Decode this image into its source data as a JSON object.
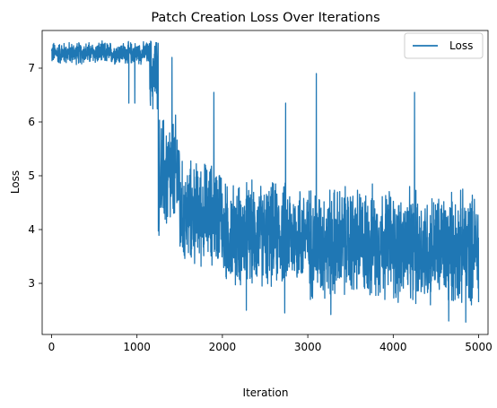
{
  "chart_data": {
    "type": "line",
    "title": "Patch Creation Loss Over Iterations",
    "xlabel": "Iteration",
    "ylabel": "Loss",
    "xlim": [
      -110,
      5110
    ],
    "ylim": [
      2.05,
      7.7
    ],
    "x_ticks": [
      0,
      1000,
      2000,
      3000,
      4000,
      5000
    ],
    "x_tick_labels": [
      "0",
      "1000",
      "2000",
      "3000",
      "4000",
      "5000"
    ],
    "y_ticks": [
      3,
      4,
      5,
      6,
      7
    ],
    "y_tick_labels": [
      "3",
      "4",
      "5",
      "6",
      "7"
    ],
    "grid": false,
    "legend": {
      "placement": "top-right",
      "entries": [
        "Loss"
      ]
    },
    "series": [
      {
        "name": "Loss",
        "color": "#1f77b4",
        "segments": [
          {
            "x_start": 0,
            "x_end": 1150,
            "mean": 7.28,
            "low": 7.05,
            "high": 7.52
          },
          {
            "x_start": 1150,
            "x_end": 1250,
            "mean": 6.9,
            "low": 5.9,
            "high": 7.55
          },
          {
            "x_start": 1250,
            "x_end": 1500,
            "mean": 5.0,
            "low": 3.7,
            "high": 6.3
          },
          {
            "x_start": 1500,
            "x_end": 2000,
            "mean": 4.3,
            "low": 3.3,
            "high": 5.5
          },
          {
            "x_start": 2000,
            "x_end": 3000,
            "mean": 3.9,
            "low": 2.9,
            "high": 5.1
          },
          {
            "x_start": 3000,
            "x_end": 4000,
            "mean": 3.75,
            "low": 2.7,
            "high": 5.1
          },
          {
            "x_start": 4000,
            "x_end": 5000,
            "mean": 3.65,
            "low": 2.6,
            "high": 5.0
          }
        ],
        "spikes": [
          {
            "x": 905,
            "y": 6.35
          },
          {
            "x": 975,
            "y": 6.35
          },
          {
            "x": 1190,
            "y": 6.8
          },
          {
            "x": 1410,
            "y": 7.2
          },
          {
            "x": 1900,
            "y": 6.55
          },
          {
            "x": 2740,
            "y": 6.35
          },
          {
            "x": 3100,
            "y": 6.9
          },
          {
            "x": 4250,
            "y": 6.55
          },
          {
            "x": 2280,
            "y": 2.5
          },
          {
            "x": 2730,
            "y": 2.45
          },
          {
            "x": 3270,
            "y": 2.42
          },
          {
            "x": 4650,
            "y": 2.3
          },
          {
            "x": 4850,
            "y": 2.28
          },
          {
            "x": 5000,
            "y": 2.65
          }
        ]
      }
    ]
  }
}
